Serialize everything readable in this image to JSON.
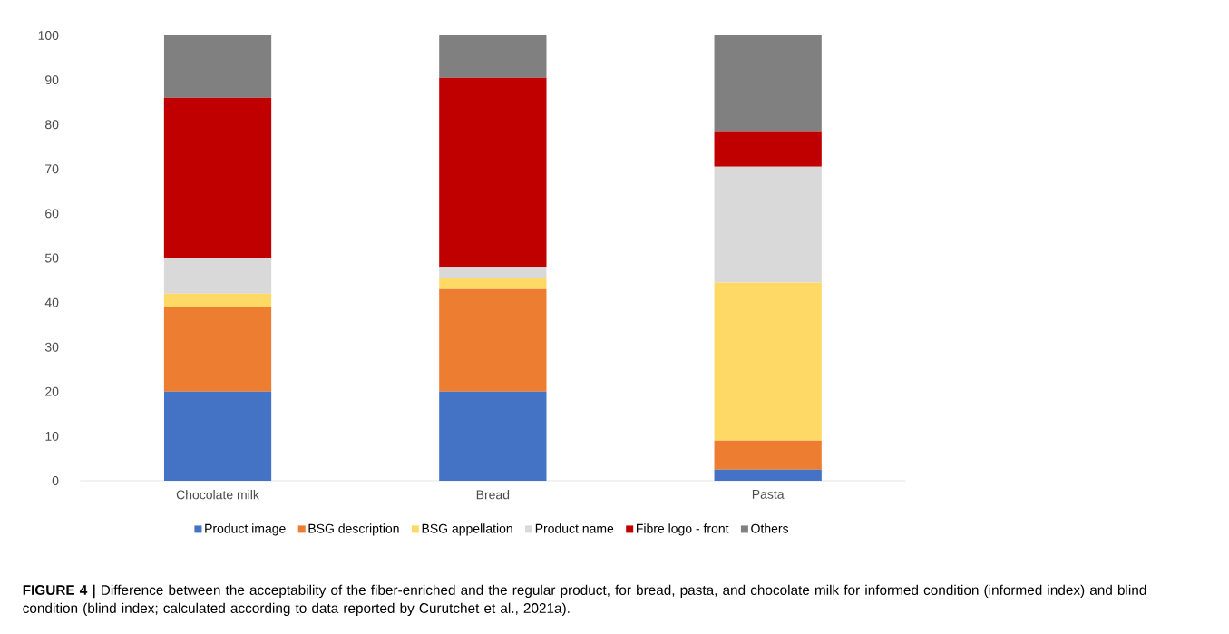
{
  "chart_data": {
    "type": "bar",
    "stacked": true,
    "categories": [
      "Chocolate milk",
      "Bread",
      "Pasta"
    ],
    "series": [
      {
        "name": "Product image",
        "color": "#4472c4",
        "values": [
          20,
          20,
          2.5
        ]
      },
      {
        "name": "BSG description",
        "color": "#ed7d31",
        "values": [
          19,
          23,
          6.5
        ]
      },
      {
        "name": "BSG appellation",
        "color": "#ffd966",
        "values": [
          3,
          2.5,
          35.5
        ]
      },
      {
        "name": "Product name",
        "color": "#d9d9d9",
        "values": [
          8,
          2.5,
          26
        ]
      },
      {
        "name": "Fibre logo - front",
        "color": "#c00000",
        "values": [
          36,
          42.5,
          8
        ]
      },
      {
        "name": "Others",
        "color": "#808080",
        "values": [
          14,
          9.5,
          21.5
        ]
      }
    ],
    "ylim": [
      0,
      100
    ],
    "yticks": [
      0,
      10,
      20,
      30,
      40,
      50,
      60,
      70,
      80,
      90,
      100
    ],
    "legend": "bottom",
    "annotations": [
      "**FIGURE 4 |** Difference between the acceptability of the fiber-enriched and the regular product, for bread, pasta, and chocolate milk for informed condition (informed index) and blind condition (blind index; calculated according to data reported by Curutchet et al., 2021a)."
    ]
  }
}
